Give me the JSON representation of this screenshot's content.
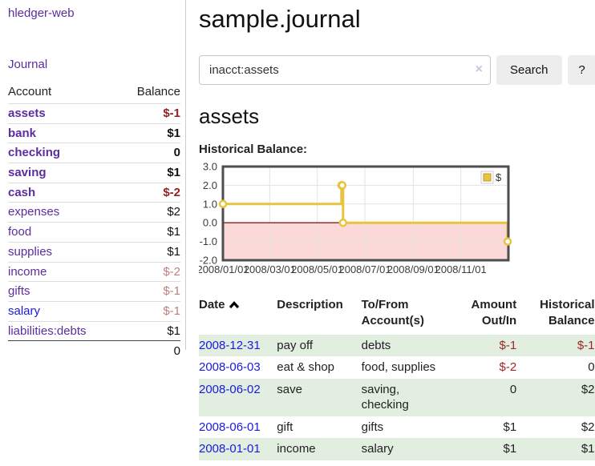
{
  "app": {
    "brand": "hledger-web"
  },
  "sidebar": {
    "nav_journal": "Journal",
    "table_headers": {
      "account": "Account",
      "balance": "Balance"
    },
    "accounts": [
      {
        "name": "assets",
        "depth": 1,
        "bold": true,
        "balance": "$-1",
        "tone": "neg-strong"
      },
      {
        "name": "bank",
        "depth": 2,
        "bold": true,
        "balance": "$1",
        "tone": "pos"
      },
      {
        "name": "checking",
        "depth": 3,
        "bold": true,
        "balance": "0",
        "tone": "pos"
      },
      {
        "name": "saving",
        "depth": 3,
        "bold": true,
        "balance": "$1",
        "tone": "pos"
      },
      {
        "name": "cash",
        "depth": 2,
        "bold": true,
        "balance": "$-2",
        "tone": "neg-strong"
      },
      {
        "name": "expenses",
        "depth": 1,
        "bold": false,
        "balance": "$2",
        "tone": "pos"
      },
      {
        "name": "food",
        "depth": 2,
        "bold": false,
        "balance": "$1",
        "tone": "pos"
      },
      {
        "name": "supplies",
        "depth": 2,
        "bold": false,
        "balance": "$1",
        "tone": "pos"
      },
      {
        "name": "income",
        "depth": 1,
        "bold": false,
        "balance": "$-2",
        "tone": "neg-muted"
      },
      {
        "name": "gifts",
        "depth": 2,
        "bold": false,
        "balance": "$-1",
        "tone": "neg-muted"
      },
      {
        "name": "salary",
        "depth": 2,
        "bold": false,
        "balance": "$-1",
        "tone": "neg-muted",
        "link_color": "blue"
      },
      {
        "name": "liabilities:debts",
        "depth": 1,
        "bold": false,
        "balance": "$1",
        "tone": "pos"
      }
    ],
    "total": "0"
  },
  "main": {
    "title": "sample.journal",
    "search": {
      "value": "inacct:assets",
      "clear_glyph": "×",
      "button_label": "Search",
      "help_label": "?"
    },
    "heading": "assets",
    "chart_title": "Historical Balance:"
  },
  "chart_data": {
    "type": "line",
    "step": true,
    "title": "Historical Balance",
    "series": [
      {
        "name": "$",
        "points": [
          [
            "2008-01-01",
            1.0
          ],
          [
            "2008-06-01",
            2.0
          ],
          [
            "2008-06-02",
            2.0
          ],
          [
            "2008-06-03",
            0.0
          ],
          [
            "2008-12-31",
            -1.0
          ]
        ]
      }
    ],
    "xdomain": [
      "2008-01-01",
      "2009-01-01"
    ],
    "xticks": [
      {
        "date": "2008-01-01",
        "label": "2008/01/01"
      },
      {
        "date": "2008-03-01",
        "label": "2008/03/01"
      },
      {
        "date": "2008-05-01",
        "label": "2008/05/01"
      },
      {
        "date": "2008-07-01",
        "label": "2008/07/01"
      },
      {
        "date": "2008-09-01",
        "label": "2008/09/01"
      },
      {
        "date": "2008-11-01",
        "label": "2008/11/01"
      }
    ],
    "ylim": [
      -2.0,
      3.0
    ],
    "ytick_step": 1.0,
    "ytick_labels": [
      "3.0",
      "2.0",
      "1.0",
      "0.0",
      "-1.0",
      "-2.0"
    ],
    "legend": {
      "label": "$",
      "position": "top-right"
    },
    "grid": true,
    "negative_region_shaded": true,
    "line_color": "#e9c23f",
    "marker_fill": "#ffffff",
    "zero_line_color": "#8b1a1a",
    "negative_fill": "#fbd9d9",
    "grid_color": "#e2e2e2",
    "border_color": "#4d4d4d"
  },
  "register": {
    "headers": {
      "date": "Date",
      "description": "Description",
      "tofrom": "To/From Account(s)",
      "amount": "Amount Out/In",
      "balance": "Historical Balance"
    },
    "sort_icon": "chevron-up-icon",
    "rows": [
      {
        "date": "2008-12-31",
        "description": "pay off",
        "accounts": "debts",
        "amount": "$-1",
        "amount_neg": true,
        "balance": "$-1",
        "balance_neg": true
      },
      {
        "date": "2008-06-03",
        "description": "eat & shop",
        "accounts": "food, supplies",
        "amount": "$-2",
        "amount_neg": true,
        "balance": "0",
        "balance_neg": false
      },
      {
        "date": "2008-06-02",
        "description": "save",
        "accounts": "saving, checking",
        "amount": "0",
        "amount_neg": false,
        "balance": "$2",
        "balance_neg": false
      },
      {
        "date": "2008-06-01",
        "description": "gift",
        "accounts": "gifts",
        "amount": "$1",
        "amount_neg": false,
        "balance": "$2",
        "balance_neg": false
      },
      {
        "date": "2008-01-01",
        "description": "income",
        "accounts": "salary",
        "amount": "$1",
        "amount_neg": false,
        "balance": "$1",
        "balance_neg": false
      }
    ]
  },
  "colors": {
    "link_purple": "#5b2d9e",
    "link_blue": "#1a1add",
    "negative_strong": "#941f1f",
    "negative_muted": "#bc7f7f",
    "table_negative": "#9e2727",
    "stripe_green": "#e1eee0",
    "chart_line": "#e9c23f",
    "chart_negative_fill": "#fbd9d9",
    "button_bg": "#ededed"
  }
}
